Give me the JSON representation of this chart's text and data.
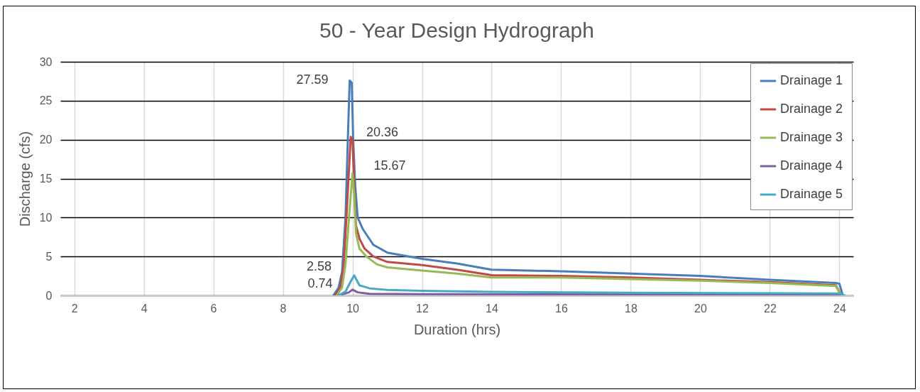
{
  "chart_data": {
    "type": "line",
    "title": "50 - Year Design Hydrograph",
    "xlabel": "Duration (hrs)",
    "ylabel": "Discharge (cfs)",
    "xlim": [
      1.6,
      24.4
    ],
    "xticks": [
      2,
      4,
      6,
      8,
      10,
      12,
      14,
      16,
      18,
      20,
      22,
      24
    ],
    "ylim": [
      0,
      30
    ],
    "yticks": [
      0,
      5,
      10,
      15,
      20,
      25,
      30
    ],
    "grid": true,
    "legend": "top right",
    "marker": "none",
    "line_style": "solid",
    "series": [
      {
        "name": "Drainage 1",
        "color": "#4a7ebb",
        "x": [
          9.45,
          9.6,
          9.7,
          9.8,
          9.88,
          9.92,
          9.98,
          10.02,
          10.08,
          10.15,
          10.3,
          10.6,
          11,
          12,
          13,
          14,
          16,
          18,
          20,
          22,
          23.9,
          24.0,
          24.1
        ],
        "values": [
          0,
          1,
          3,
          10,
          22,
          27.59,
          27.3,
          20,
          14,
          10,
          8.5,
          6.5,
          5.5,
          4.7,
          4.1,
          3.3,
          3.1,
          2.8,
          2.5,
          2.0,
          1.6,
          1.5,
          0
        ]
      },
      {
        "name": "Drainage 2",
        "color": "#be4b48",
        "x": [
          9.5,
          9.65,
          9.75,
          9.85,
          9.95,
          10.0,
          10.05,
          10.1,
          10.2,
          10.35,
          10.6,
          11,
          12,
          13,
          14,
          16,
          18,
          20,
          22,
          23.9,
          24.05
        ],
        "values": [
          0,
          1,
          4,
          12,
          20.36,
          20,
          14,
          9,
          7.3,
          6,
          5,
          4.3,
          3.9,
          3.3,
          2.6,
          2.5,
          2.3,
          2.0,
          1.7,
          1.3,
          0
        ]
      },
      {
        "name": "Drainage 3",
        "color": "#98b954",
        "x": [
          9.55,
          9.7,
          9.8,
          9.9,
          10.0,
          10.05,
          10.1,
          10.2,
          10.4,
          10.7,
          11,
          12,
          13,
          14,
          16,
          18,
          20,
          22,
          23.9,
          24.05
        ],
        "values": [
          0,
          1,
          4,
          10,
          15.67,
          13,
          8,
          6,
          5,
          4,
          3.6,
          3.2,
          2.8,
          2.3,
          2.3,
          2.1,
          1.9,
          1.6,
          1.2,
          0
        ]
      },
      {
        "name": "Drainage 4",
        "color": "#7d60a0",
        "x": [
          9.6,
          9.9,
          10.0,
          10.15,
          10.5,
          12,
          24,
          24.1
        ],
        "values": [
          0,
          0.4,
          0.74,
          0.4,
          0.2,
          0.15,
          0.1,
          0
        ]
      },
      {
        "name": "Drainage 5",
        "color": "#46aac5",
        "x": [
          9.6,
          9.8,
          9.95,
          10.05,
          10.2,
          10.5,
          11,
          12,
          14,
          18,
          24,
          24.15
        ],
        "values": [
          0,
          0.5,
          1.8,
          2.58,
          1.3,
          0.9,
          0.7,
          0.6,
          0.45,
          0.35,
          0.25,
          0
        ]
      }
    ],
    "annotations": [
      {
        "text": "27.59",
        "x": 9.92,
        "y": 27.59
      },
      {
        "text": "20.36",
        "x": 9.95,
        "y": 20.36
      },
      {
        "text": "15.67",
        "x": 10.0,
        "y": 15.67
      },
      {
        "text": "2.58",
        "x": 10.05,
        "y": 2.58
      },
      {
        "text": "0.74",
        "x": 10.0,
        "y": 0.74
      }
    ]
  }
}
